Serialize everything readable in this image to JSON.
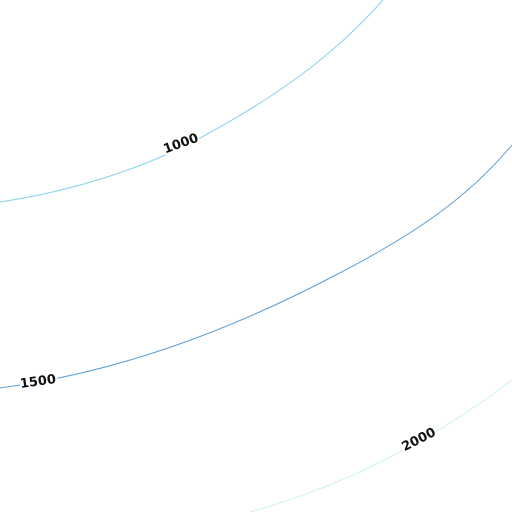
{
  "contours": [
    {
      "level": 1000,
      "color": "#86d3ea"
    },
    {
      "level": 1500,
      "color": "#5b9ed6"
    },
    {
      "level": 2000,
      "color": "#cdf1f1"
    }
  ]
}
